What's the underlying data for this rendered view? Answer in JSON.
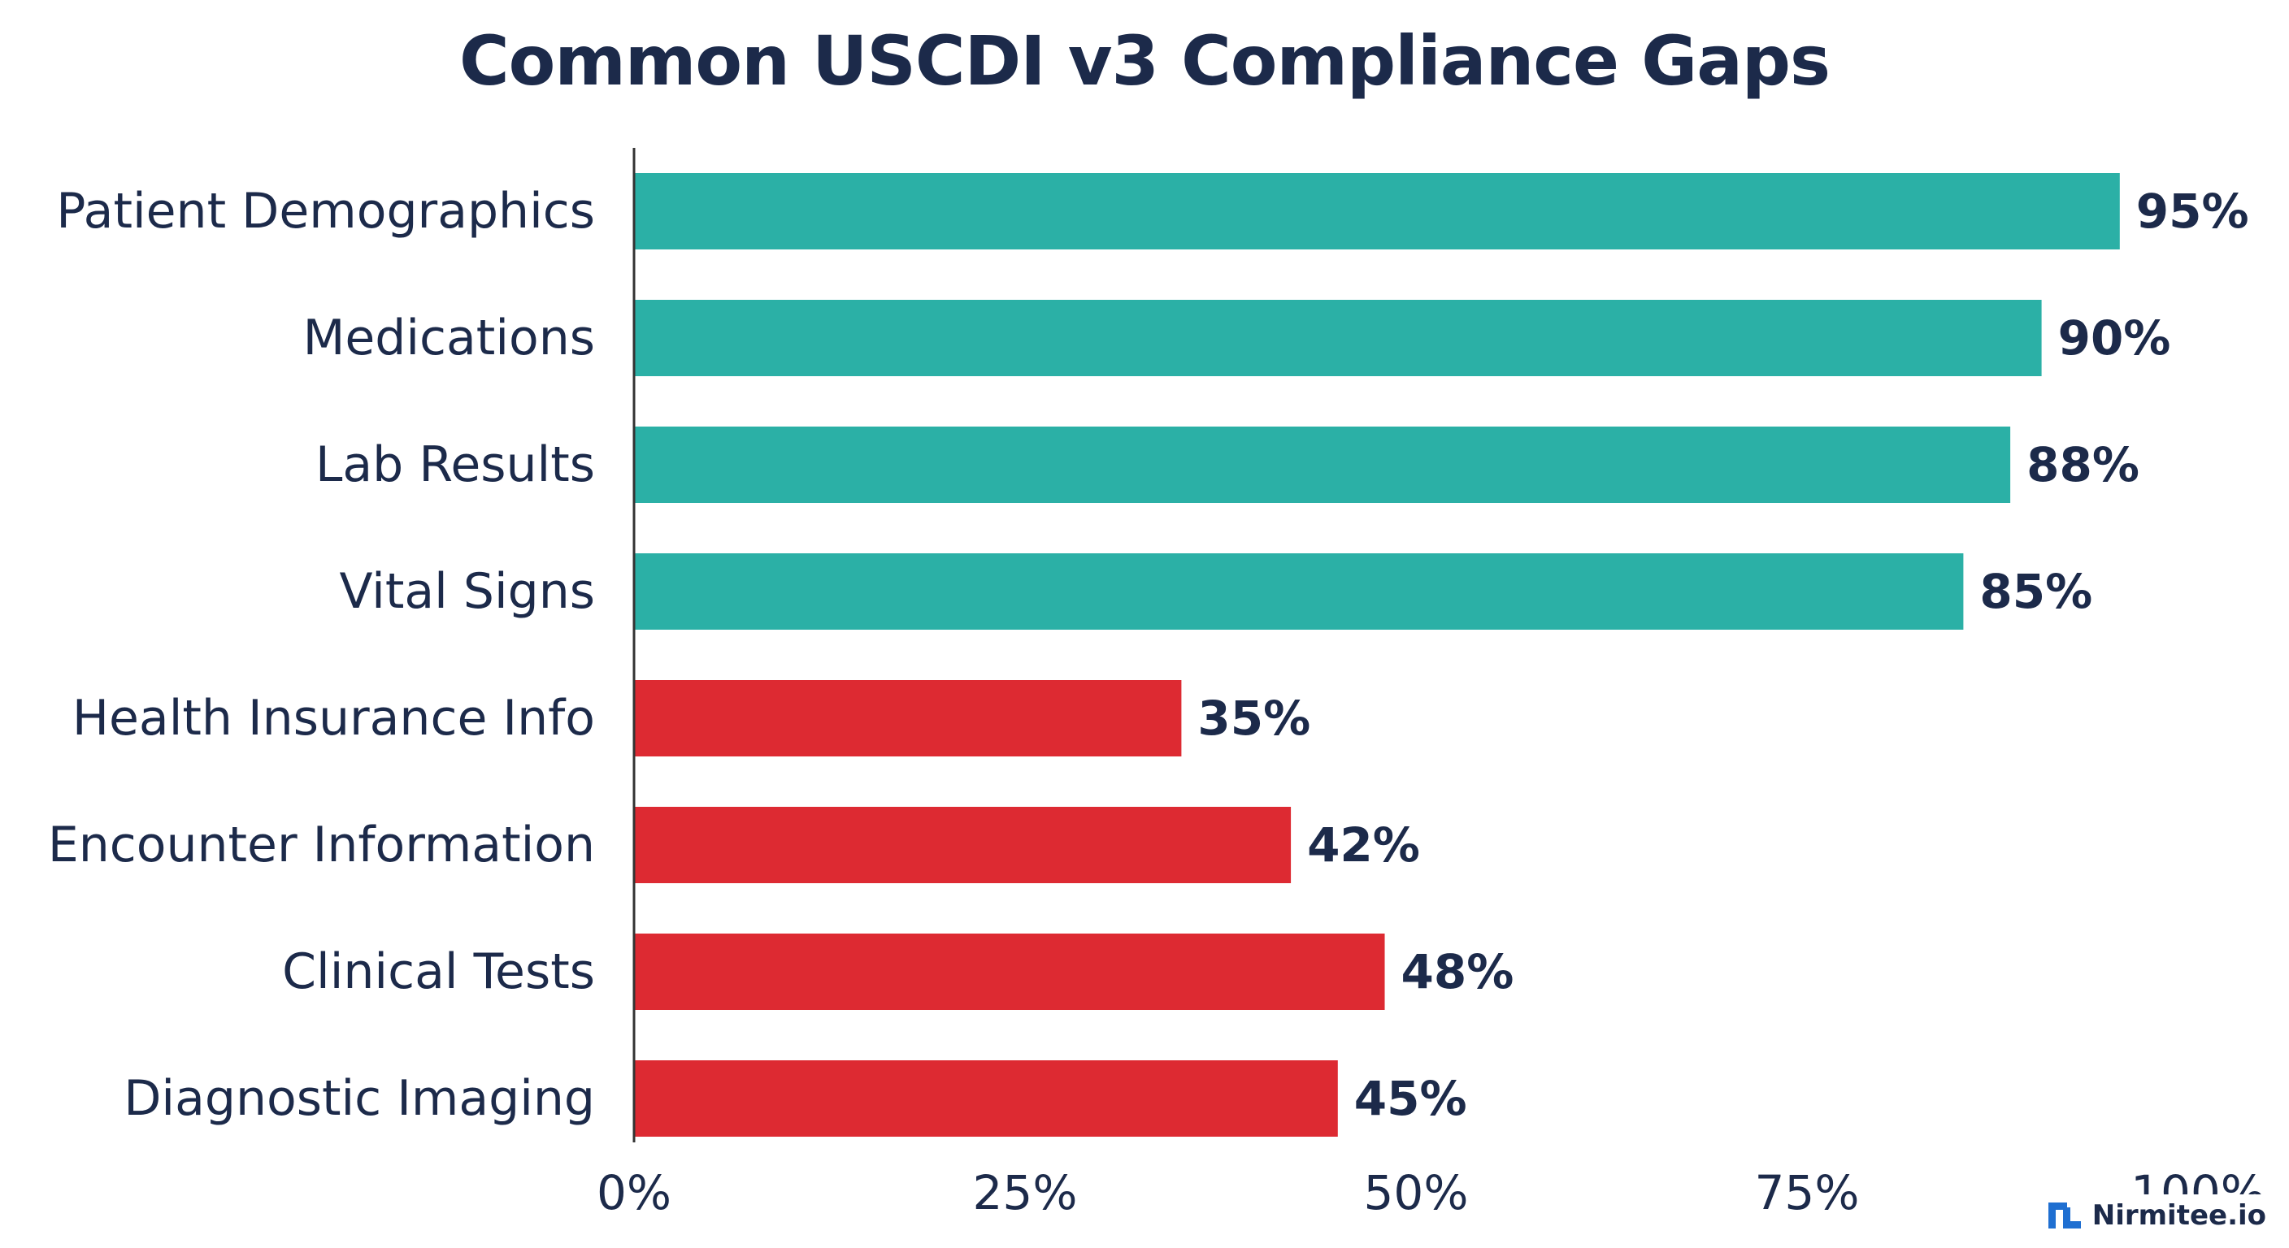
{
  "chart_data": {
    "type": "bar",
    "orientation": "horizontal",
    "title": "Common USCDI v3 Compliance Gaps",
    "xlabel": "",
    "ylabel": "",
    "xlim": [
      0,
      100
    ],
    "x_ticks": [
      "0%",
      "25%",
      "50%",
      "75%",
      "100%"
    ],
    "x_tick_values": [
      0,
      25,
      50,
      75,
      100
    ],
    "grid": false,
    "legend": "none",
    "categories": [
      "Patient Demographics",
      "Medications",
      "Lab Results",
      "Vital Signs",
      "Health Insurance Info",
      "Encounter Information",
      "Clinical Tests",
      "Diagnostic Imaging"
    ],
    "values": [
      95,
      90,
      88,
      85,
      35,
      42,
      48,
      45
    ],
    "value_labels": [
      "95%",
      "90%",
      "88%",
      "85%",
      "35%",
      "42%",
      "48%",
      "45%"
    ],
    "bar_colors": [
      "#2bb0a6",
      "#2bb0a6",
      "#2bb0a6",
      "#2bb0a6",
      "#dd2a32",
      "#dd2a32",
      "#dd2a32",
      "#dd2a32"
    ]
  },
  "colors": {
    "high": "#2bb0a6",
    "low": "#dd2a32",
    "text": "#1c2a4a",
    "axis": "#333333",
    "brand_logo": "#1f6fd1"
  },
  "brand": {
    "name": "Nirmitee.io",
    "icon": "nirmitee-logo-icon"
  }
}
